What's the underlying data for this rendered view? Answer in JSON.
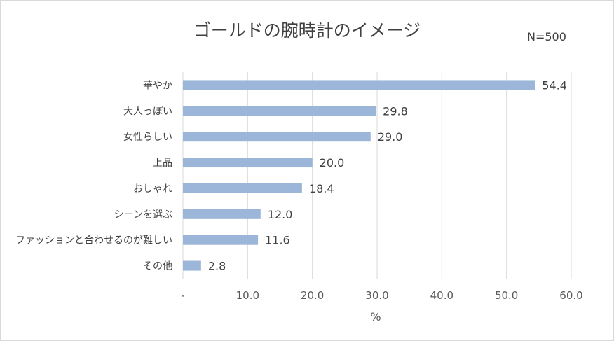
{
  "chart_data": {
    "type": "bar",
    "orientation": "horizontal",
    "title": "ゴールドの腕時計のイメージ",
    "note": "N=500",
    "xlabel": "%",
    "xlim": [
      0,
      60
    ],
    "xticks": [
      "-",
      "10.0",
      "20.0",
      "30.0",
      "40.0",
      "50.0",
      "60.0"
    ],
    "categories": [
      "華やか",
      "大人っぽい",
      "女性らしい",
      "上品",
      "おしゃれ",
      "シーンを選ぶ",
      "ファッションと合わせるのが難しい",
      "その他"
    ],
    "values": [
      54.4,
      29.8,
      29.0,
      20.0,
      18.4,
      12.0,
      11.6,
      2.8
    ],
    "value_labels": [
      "54.4",
      "29.8",
      "29.0",
      "20.0",
      "18.4",
      "12.0",
      "11.6",
      "2.8"
    ],
    "bar_color": "#9bb6d8",
    "grid": true
  }
}
